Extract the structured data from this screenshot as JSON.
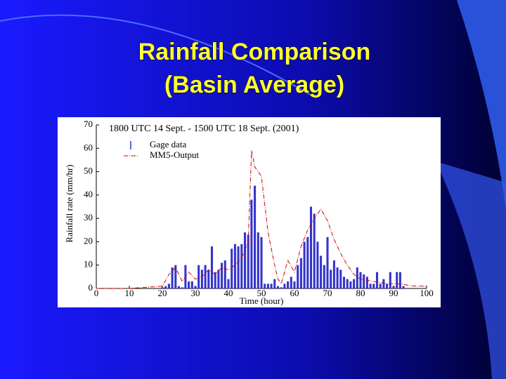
{
  "slide_title": [
    "Rainfall Comparison",
    "(Basin Average)"
  ],
  "chart_data": {
    "type": "bar",
    "title": "1800 UTC 14 Sept. - 1500 UTC 18 Sept. (2001)",
    "x_label": "Time (hour)",
    "y_label": "Rainfall rate (mm/hr)",
    "xlim": [
      0,
      100
    ],
    "ylim": [
      0,
      70
    ],
    "xticks": [
      0,
      10,
      20,
      30,
      40,
      50,
      60,
      70,
      80,
      90,
      100
    ],
    "yticks": [
      0,
      10,
      20,
      30,
      40,
      50,
      60,
      70
    ],
    "series": [
      {
        "name": "Gage data",
        "type": "bar",
        "color": "#3333cc",
        "x": [
          20,
          21,
          22,
          23,
          24,
          25,
          26,
          27,
          28,
          29,
          30,
          31,
          32,
          33,
          34,
          35,
          36,
          37,
          38,
          39,
          40,
          41,
          42,
          43,
          44,
          45,
          46,
          47,
          48,
          49,
          50,
          51,
          52,
          53,
          54,
          55,
          56,
          57,
          58,
          59,
          60,
          61,
          62,
          63,
          64,
          65,
          66,
          67,
          68,
          69,
          70,
          71,
          72,
          73,
          74,
          75,
          76,
          77,
          78,
          79,
          80,
          81,
          82,
          83,
          84,
          85,
          86,
          87,
          88,
          89,
          90,
          91,
          92,
          93
        ],
        "values": [
          0.5,
          1,
          2,
          9,
          10,
          1,
          0.5,
          10,
          3,
          3,
          1,
          10,
          8,
          10,
          8,
          18,
          7,
          8,
          11,
          12,
          4,
          17,
          19,
          18,
          19,
          24,
          23,
          38,
          44,
          24,
          22,
          2,
          2,
          2,
          4,
          1,
          0.5,
          2,
          3,
          5,
          3,
          10,
          13,
          20,
          22,
          35,
          32,
          20,
          14,
          10,
          22,
          8,
          12,
          9,
          8,
          5,
          4,
          3,
          4,
          9,
          7,
          6,
          5,
          2,
          2,
          7,
          2,
          4,
          2,
          7,
          1,
          7,
          7,
          1
        ]
      },
      {
        "name": "MM5-Output",
        "type": "line",
        "color": "#cc0000",
        "x": [
          0,
          10,
          20,
          22,
          24,
          26,
          28,
          30,
          32,
          34,
          36,
          38,
          40,
          42,
          44,
          46,
          47,
          48,
          50,
          52,
          54,
          55,
          56,
          58,
          60,
          62,
          64,
          66,
          68,
          70,
          72,
          74,
          76,
          78,
          80,
          84,
          88,
          92,
          96,
          100
        ],
        "values": [
          0,
          0,
          1,
          6,
          9,
          3,
          7,
          4,
          5,
          8,
          6,
          9,
          8,
          10,
          13,
          20,
          59,
          52,
          48,
          24,
          10,
          4,
          2,
          12,
          7,
          18,
          25,
          30,
          34,
          29,
          21,
          15,
          10,
          6,
          4,
          3,
          2,
          2,
          1,
          1
        ]
      }
    ]
  }
}
